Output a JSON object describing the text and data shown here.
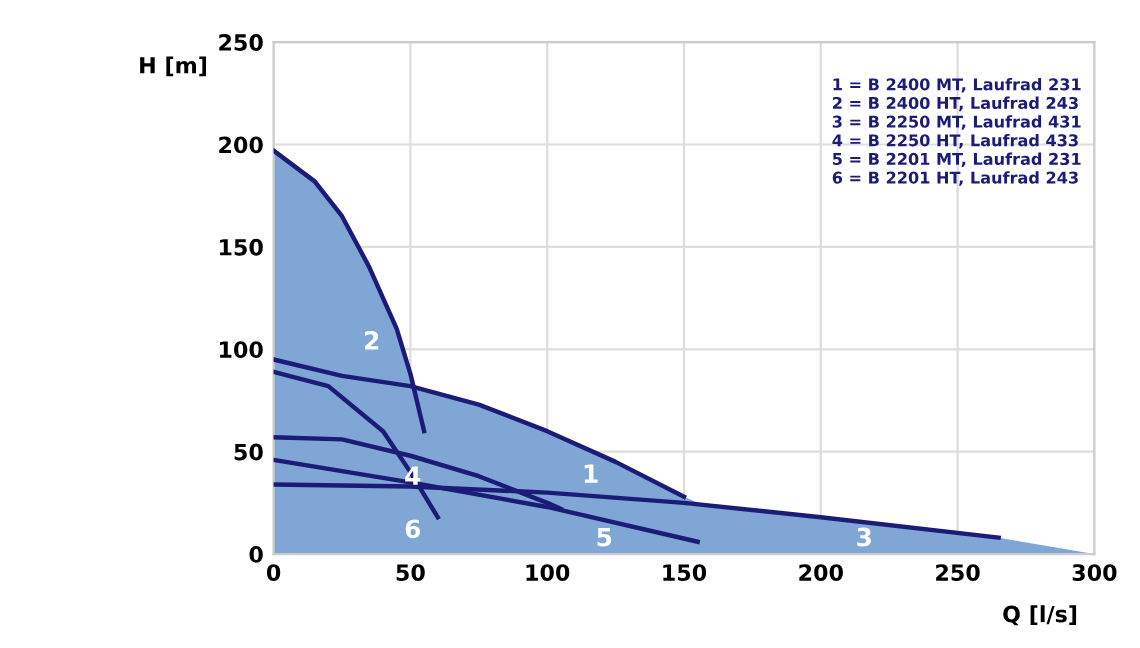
{
  "chart_data": {
    "type": "line",
    "xlabel": "Q [l/s]",
    "ylabel": "H [m]",
    "xlim": [
      0,
      300
    ],
    "ylim": [
      0,
      250
    ],
    "xticks": [
      0,
      50,
      100,
      150,
      200,
      250,
      300
    ],
    "yticks": [
      0,
      50,
      100,
      150,
      200,
      250
    ],
    "grid": true,
    "marker": "none",
    "line_style": "solid",
    "series": [
      {
        "type": "area",
        "color": "#7fa6d4",
        "x": [
          0,
          15,
          25,
          35,
          45,
          52,
          75,
          100,
          125,
          150,
          157,
          200,
          265,
          300
        ],
        "values": [
          197,
          182,
          165,
          140,
          110,
          82,
          73,
          60,
          45,
          28,
          24,
          18,
          8,
          0
        ]
      },
      {
        "color": "#1c1c78",
        "x": [
          0,
          25,
          50,
          75,
          100,
          125,
          150
        ],
        "values": [
          95,
          87,
          82,
          73,
          60,
          45,
          28
        ]
      },
      {
        "color": "#1c1c78",
        "x": [
          0,
          15,
          25,
          35,
          45,
          50,
          55
        ],
        "values": [
          197,
          182,
          165,
          140,
          110,
          88,
          60
        ]
      },
      {
        "color": "#1c1c78",
        "x": [
          0,
          50,
          100,
          150,
          200,
          265
        ],
        "values": [
          34,
          33,
          30,
          25,
          18,
          8
        ]
      },
      {
        "color": "#1c1c78",
        "x": [
          0,
          25,
          50,
          75,
          100,
          105
        ],
        "values": [
          57,
          56,
          48,
          38,
          25,
          22
        ]
      },
      {
        "color": "#1c1c78",
        "x": [
          0,
          50,
          100,
          155
        ],
        "values": [
          46,
          35,
          23,
          6
        ]
      },
      {
        "color": "#1c1c78",
        "x": [
          0,
          20,
          40,
          50,
          60
        ],
        "values": [
          89,
          82,
          60,
          40,
          18
        ]
      }
    ],
    "annotations": [
      {
        "text": "1",
        "x": 125,
        "y": 45
      },
      {
        "text": "2",
        "x": 45,
        "y": 110
      },
      {
        "text": "3",
        "x": 225,
        "y": 14
      },
      {
        "text": "4",
        "x": 60,
        "y": 44
      },
      {
        "text": "5",
        "x": 130,
        "y": 14
      },
      {
        "text": "6",
        "x": 60,
        "y": 18
      },
      "1 = B 2400 MT, Laufrad 231\n2 = B 2400 HT, Laufrad 243\n3 = B 2250 MT, Laufrad 431\n4 = B 2250 HT, Laufrad 433\n5 = B 2201 MT, Laufrad 231\n6 = B 2201 HT, Laufrad 243"
    ]
  }
}
